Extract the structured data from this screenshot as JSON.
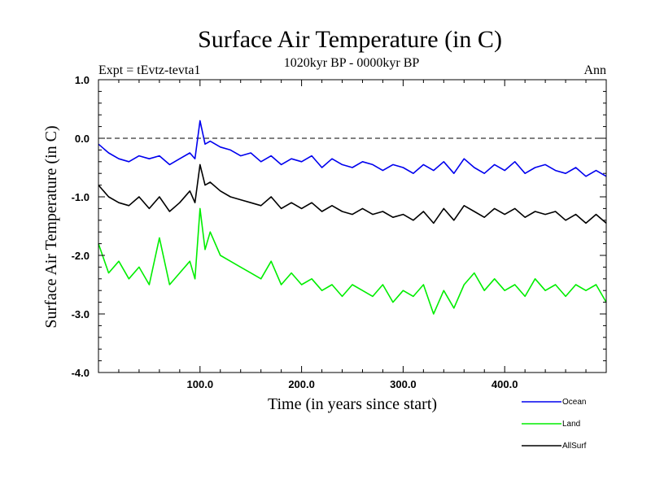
{
  "chart_data": {
    "type": "line",
    "title": "Surface Air Temperature (in C)",
    "subtitle": "1020kyr BP - 0000kyr BP",
    "left_label": "Expt = tEvtz-tevta1",
    "right_label": "Ann",
    "xlabel": "Time (in years since start)",
    "ylabel": "Surface Air Temperature (in C)",
    "xlim": [
      0,
      500
    ],
    "ylim": [
      -4.0,
      1.0
    ],
    "x_ticks": [
      100,
      200,
      300,
      400
    ],
    "x_tick_labels": [
      "100.0",
      "200.0",
      "300.0",
      "400.0"
    ],
    "y_ticks": [
      1.0,
      0.0,
      -1.0,
      -2.0,
      -3.0,
      -4.0
    ],
    "y_tick_labels": [
      "1.0",
      "0.0",
      "-1.0",
      "-2.0",
      "-3.0",
      "-4.0"
    ],
    "reference_line": 0.0,
    "legend_position": "below-right",
    "series": [
      {
        "name": "Ocean",
        "color": "#0000ee",
        "x": [
          0,
          10,
          20,
          30,
          40,
          50,
          60,
          70,
          80,
          90,
          95,
          100,
          105,
          110,
          120,
          130,
          140,
          150,
          160,
          170,
          180,
          190,
          200,
          210,
          220,
          230,
          240,
          250,
          260,
          270,
          280,
          290,
          300,
          310,
          320,
          330,
          340,
          350,
          360,
          370,
          380,
          390,
          400,
          410,
          420,
          430,
          440,
          450,
          460,
          470,
          480,
          490,
          500
        ],
        "values": [
          -0.1,
          -0.25,
          -0.35,
          -0.4,
          -0.3,
          -0.35,
          -0.3,
          -0.45,
          -0.35,
          -0.25,
          -0.35,
          0.3,
          -0.1,
          -0.05,
          -0.15,
          -0.2,
          -0.3,
          -0.25,
          -0.4,
          -0.3,
          -0.45,
          -0.35,
          -0.4,
          -0.3,
          -0.5,
          -0.35,
          -0.45,
          -0.5,
          -0.4,
          -0.45,
          -0.55,
          -0.45,
          -0.5,
          -0.6,
          -0.45,
          -0.55,
          -0.4,
          -0.6,
          -0.35,
          -0.5,
          -0.6,
          -0.45,
          -0.55,
          -0.4,
          -0.6,
          -0.5,
          -0.45,
          -0.55,
          -0.6,
          -0.5,
          -0.65,
          -0.55,
          -0.65
        ]
      },
      {
        "name": "Land",
        "color": "#00ee00",
        "x": [
          0,
          10,
          20,
          30,
          40,
          50,
          60,
          70,
          80,
          90,
          95,
          100,
          105,
          110,
          120,
          130,
          140,
          150,
          160,
          170,
          180,
          190,
          200,
          210,
          220,
          230,
          240,
          250,
          260,
          270,
          280,
          290,
          300,
          310,
          320,
          330,
          340,
          350,
          360,
          370,
          380,
          390,
          400,
          410,
          420,
          430,
          440,
          450,
          460,
          470,
          480,
          490,
          500
        ],
        "values": [
          -1.8,
          -2.3,
          -2.1,
          -2.4,
          -2.2,
          -2.5,
          -1.7,
          -2.5,
          -2.3,
          -2.1,
          -2.4,
          -1.2,
          -1.9,
          -1.6,
          -2.0,
          -2.1,
          -2.2,
          -2.3,
          -2.4,
          -2.1,
          -2.5,
          -2.3,
          -2.5,
          -2.4,
          -2.6,
          -2.5,
          -2.7,
          -2.5,
          -2.6,
          -2.7,
          -2.5,
          -2.8,
          -2.6,
          -2.7,
          -2.5,
          -3.0,
          -2.6,
          -2.9,
          -2.5,
          -2.3,
          -2.6,
          -2.4,
          -2.6,
          -2.5,
          -2.7,
          -2.4,
          -2.6,
          -2.5,
          -2.7,
          -2.5,
          -2.6,
          -2.5,
          -2.8
        ]
      },
      {
        "name": "AllSurf",
        "color": "#000000",
        "x": [
          0,
          10,
          20,
          30,
          40,
          50,
          60,
          70,
          80,
          90,
          95,
          100,
          105,
          110,
          120,
          130,
          140,
          150,
          160,
          170,
          180,
          190,
          200,
          210,
          220,
          230,
          240,
          250,
          260,
          270,
          280,
          290,
          300,
          310,
          320,
          330,
          340,
          350,
          360,
          370,
          380,
          390,
          400,
          410,
          420,
          430,
          440,
          450,
          460,
          470,
          480,
          490,
          500
        ],
        "values": [
          -0.8,
          -1.0,
          -1.1,
          -1.15,
          -1.0,
          -1.2,
          -1.0,
          -1.25,
          -1.1,
          -0.9,
          -1.1,
          -0.45,
          -0.8,
          -0.75,
          -0.9,
          -1.0,
          -1.05,
          -1.1,
          -1.15,
          -1.0,
          -1.2,
          -1.1,
          -1.2,
          -1.1,
          -1.25,
          -1.15,
          -1.25,
          -1.3,
          -1.2,
          -1.3,
          -1.25,
          -1.35,
          -1.3,
          -1.4,
          -1.25,
          -1.45,
          -1.2,
          -1.4,
          -1.15,
          -1.25,
          -1.35,
          -1.2,
          -1.3,
          -1.2,
          -1.35,
          -1.25,
          -1.3,
          -1.25,
          -1.4,
          -1.3,
          -1.45,
          -1.3,
          -1.45
        ]
      }
    ]
  }
}
